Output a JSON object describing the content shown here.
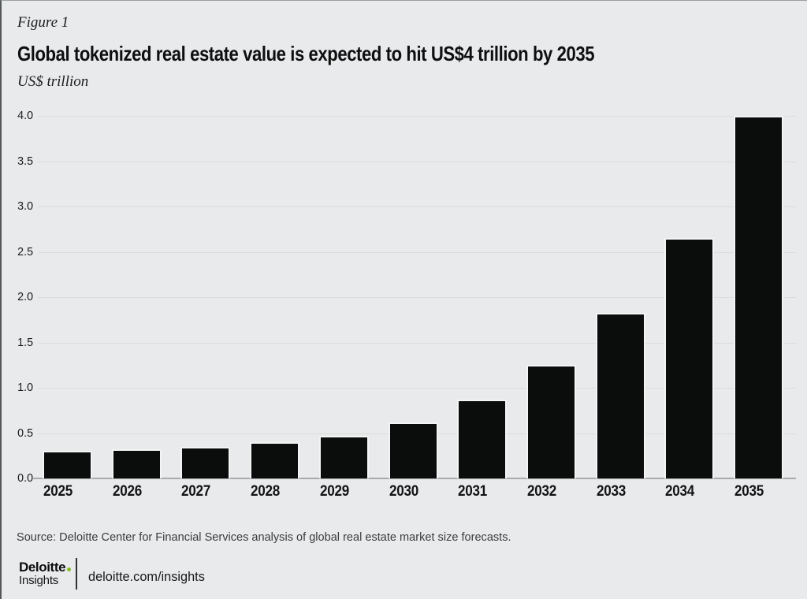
{
  "figure_label": "Figure 1",
  "title": "Global tokenized real estate value is expected to hit US$4 trillion by 2035",
  "subtitle": "US$ trillion",
  "source": "Source: Deloitte Center for Financial Services analysis of global real estate market size forecasts.",
  "footer": {
    "brand_name": "Deloitte",
    "brand_sub": "Insights",
    "link": "deloitte.com/insights"
  },
  "colors": {
    "background": "#e8eaeb",
    "bar": "#0b0d0c",
    "bar_outline": "#f3f4f4",
    "gridline": "#d9dbdd",
    "axis_line": "#a8abad",
    "text": "#121414",
    "source_text": "#3a3c3d",
    "accent_green": "#86bc25"
  },
  "chart_data": {
    "type": "bar",
    "title": "Global tokenized real estate value is expected to hit US$4 trillion by 2035",
    "categories": [
      "2025",
      "2026",
      "2027",
      "2028",
      "2029",
      "2030",
      "2031",
      "2032",
      "2033",
      "2034",
      "2035"
    ],
    "values": [
      0.3,
      0.32,
      0.35,
      0.4,
      0.47,
      0.62,
      0.87,
      1.25,
      1.83,
      2.65,
      4.0
    ],
    "xlabel": "",
    "ylabel": "US$ trillion",
    "ylim": [
      0,
      4.0
    ],
    "yticks": [
      0.0,
      0.5,
      1.0,
      1.5,
      2.0,
      2.5,
      3.0,
      3.5,
      4.0
    ],
    "grid": "horizontal",
    "legend": "none",
    "bar_color": "#0b0d0c"
  }
}
